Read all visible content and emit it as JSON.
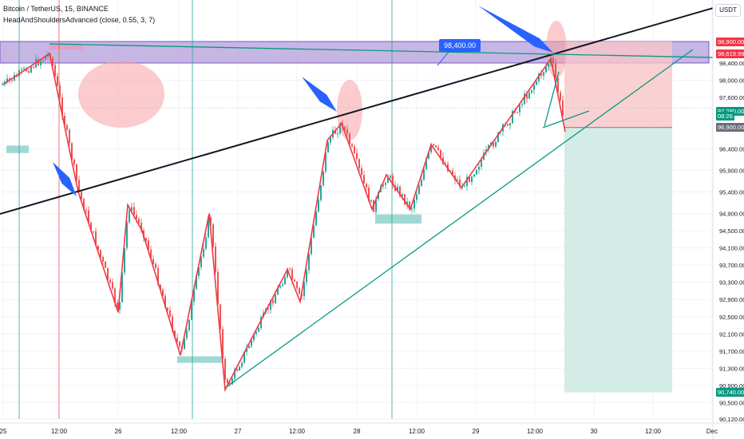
{
  "header": {
    "symbol": "Bitcoin / TetherUS, 15, BINANCE",
    "indicator": "HeadAndShouldersAdvanced (close, 0.55, 3, 7)",
    "currency_button": "USDT"
  },
  "colors": {
    "up": "#26a69a",
    "down": "#ef5350",
    "zigzag": "#f23645",
    "trendline": "#131722",
    "support": "#089981",
    "resistance_zone": "#b39ddb",
    "resistance_border": "#7e57c2",
    "stop_zone": "#f7c5c8",
    "target_zone": "#cfeae3",
    "arrow": "#2962ff",
    "highlight": "#f7a1a6"
  },
  "chart_data": {
    "type": "candlestick",
    "y_ticks": [
      "98,400.00",
      "98,000.00",
      "97,600.00",
      "96,400.00",
      "95,900.00",
      "95,400.00",
      "94,900.00",
      "94,500.00",
      "94,100.00",
      "93,700.00",
      "93,300.00",
      "92,900.00",
      "92,500.00",
      "92,100.00",
      "91,700.00",
      "91,300.00",
      "90,900.00",
      "90,500.00",
      "90,120.00"
    ],
    "x_ticks": [
      "25",
      "12:00",
      "26",
      "12:00",
      "27",
      "12:00",
      "28",
      "12:00",
      "29",
      "12:00",
      "30",
      "12:00",
      "Dec"
    ],
    "ylim": [
      90120,
      99000
    ],
    "zigzag_points": [
      {
        "x": "24-Nov 22:00",
        "y": 97900
      },
      {
        "x": "25 12:00",
        "y": 98620
      },
      {
        "x": "25 20:00",
        "y": 95400
      },
      {
        "x": "26",
        "y": 92600
      },
      {
        "x": "26 03:00",
        "y": 95100
      },
      {
        "x": "26 06:00",
        "y": 94500
      },
      {
        "x": "26 12:00",
        "y": 91600
      },
      {
        "x": "26 18:00",
        "y": 94900
      },
      {
        "x": "27 00:00",
        "y": 90800
      },
      {
        "x": "27 12:00",
        "y": 93600
      },
      {
        "x": "27 18:00",
        "y": 92850
      },
      {
        "x": "28 00:00",
        "y": 96600
      },
      {
        "x": "28 06:00",
        "y": 97000
      },
      {
        "x": "28 12:00",
        "y": 95000
      },
      {
        "x": "28 18:00",
        "y": 95800
      },
      {
        "x": "29 00:00",
        "y": 95000
      },
      {
        "x": "29 06:00",
        "y": 96500
      },
      {
        "x": "29 12:00",
        "y": 95500
      },
      {
        "x": "29 18:00",
        "y": 98500
      },
      {
        "x": "29 21:00",
        "y": 96800
      }
    ],
    "resistance_zone": [
      98400,
      98900
    ],
    "trade": {
      "entry": 97280,
      "stop": 98900,
      "target": 90740
    },
    "price_labels": [
      {
        "text": "98,900.00",
        "color": "#f23645",
        "value": 98900
      },
      {
        "text": "98,619.99",
        "color": "#f23645",
        "value": 98620
      },
      {
        "text": "97,280.00",
        "color": "#089981",
        "value": 97280
      },
      {
        "text": "08:26",
        "color": "#089981",
        "value": 97160
      },
      {
        "text": "96,900.00",
        "color": "#6a6d78",
        "value": 96900
      },
      {
        "text": "90,740.00",
        "color": "#089981",
        "value": 90740
      }
    ],
    "callout": "98,400.00"
  }
}
